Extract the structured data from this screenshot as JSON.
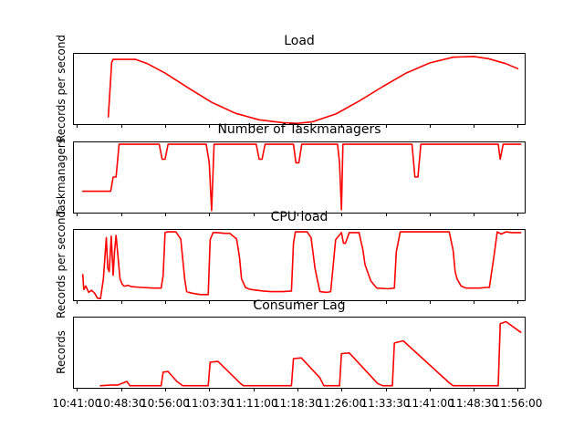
{
  "colors": {
    "series": "#ff0000",
    "axis": "#000000",
    "background": "#ffffff"
  },
  "x_tick_labels": [
    "10:41:00",
    "10:48:30",
    "10:56:00",
    "11:03:30",
    "11:11:00",
    "11:18:30",
    "11:26:00",
    "11:33:30",
    "11:41:00",
    "11:48:30",
    "11:56:00"
  ],
  "chart_data": [
    {
      "type": "line",
      "title": "Load",
      "ylabel": "Records per second",
      "y_ticks_shown": false,
      "x_format": "HH:MM:SS",
      "xlim": [
        "10:40:20",
        "11:57:10"
      ],
      "ylim": [
        0.3,
        10.2
      ],
      "series": [
        {
          "x": [
            "10:46:20",
            "10:46:55",
            "10:47:10",
            "10:50:00",
            "10:51:00",
            "10:53:00",
            "10:56:00",
            "11:00:00",
            "11:04:00",
            "11:08:00",
            "11:12:00",
            "11:16:00",
            "11:18:30",
            "11:21:00",
            "11:25:00",
            "11:29:00",
            "11:33:00",
            "11:37:00",
            "11:41:00",
            "11:45:00",
            "11:48:30",
            "11:51:00",
            "11:54:00",
            "11:56:00"
          ],
          "y": [
            1.3,
            8.9,
            9.3,
            9.3,
            9.3,
            8.7,
            7.4,
            5.3,
            3.3,
            1.8,
            0.9,
            0.5,
            0.4,
            0.6,
            1.7,
            3.5,
            5.5,
            7.4,
            8.8,
            9.6,
            9.7,
            9.4,
            8.7,
            8.0
          ]
        }
      ]
    },
    {
      "type": "line",
      "title": "Number of Taskmanagers",
      "ylabel": "Taskmanagers",
      "y_ticks_shown": false,
      "x_format": "HH:MM:SS",
      "xlim": [
        "10:40:20",
        "11:57:10"
      ],
      "ylim": [
        0,
        10
      ],
      "series": [
        {
          "x": [
            "10:42:00",
            "10:46:45",
            "10:47:10",
            "10:47:40",
            "10:48:10",
            "10:48:40",
            "10:49:00",
            "10:55:00",
            "10:55:30",
            "10:56:00",
            "10:56:30",
            "10:57:00",
            "11:03:00",
            "11:03:30",
            "11:03:55",
            "11:04:20",
            "11:04:50",
            "11:11:30",
            "11:12:00",
            "11:12:30",
            "11:13:00",
            "11:17:50",
            "11:18:15",
            "11:18:45",
            "11:19:15",
            "11:19:50",
            "11:23:20",
            "11:25:20",
            "11:25:40",
            "11:26:00",
            "11:26:15",
            "11:26:30",
            "11:38:00",
            "11:38:30",
            "11:39:00",
            "11:39:30",
            "11:52:40",
            "11:53:00",
            "11:53:30",
            "11:54:00",
            "11:56:30"
          ],
          "y": [
            3.0,
            3.0,
            5.0,
            5.0,
            9.6,
            9.6,
            9.6,
            9.6,
            7.5,
            7.5,
            9.6,
            9.6,
            9.6,
            7.0,
            0.3,
            9.6,
            9.6,
            9.6,
            7.5,
            7.5,
            9.6,
            9.6,
            7.0,
            7.0,
            9.6,
            9.6,
            9.6,
            9.6,
            7.0,
            0.4,
            9.6,
            9.6,
            9.6,
            5.0,
            5.0,
            9.6,
            9.6,
            7.5,
            9.6,
            9.6,
            9.6
          ]
        }
      ]
    },
    {
      "type": "line",
      "title": "CPU load",
      "ylabel": "Records per second",
      "y_ticks_shown": false,
      "x_format": "HH:MM:SS",
      "xlim": [
        "10:40:20",
        "11:57:10"
      ],
      "ylim": [
        0,
        10
      ],
      "series": [
        {
          "x": [
            "10:42:00",
            "10:42:10",
            "10:42:30",
            "10:43:00",
            "10:43:30",
            "10:44:00",
            "10:44:30",
            "10:45:00",
            "10:45:30",
            "10:46:00",
            "10:46:15",
            "10:46:30",
            "10:46:50",
            "10:47:10",
            "10:47:25",
            "10:47:40",
            "10:48:00",
            "10:48:20",
            "10:48:40",
            "10:49:00",
            "10:49:20",
            "10:49:40",
            "10:50:20",
            "10:52:00",
            "10:54:00",
            "10:55:20",
            "10:55:40",
            "10:56:00",
            "10:56:20",
            "10:56:50",
            "10:57:20",
            "10:57:50",
            "10:58:40",
            "10:59:20",
            "10:59:40",
            "11:00:30",
            "11:02:00",
            "11:03:20",
            "11:03:40",
            "11:04:10",
            "11:05:00",
            "11:06:00",
            "11:07:00",
            "11:08:10",
            "11:08:40",
            "11:09:00",
            "11:09:40",
            "11:10:10",
            "11:10:40",
            "11:12:40",
            "11:14:00",
            "11:16:00",
            "11:17:30",
            "11:17:50",
            "11:18:10",
            "11:19:00",
            "11:20:10",
            "11:20:50",
            "11:21:30",
            "11:22:00",
            "11:22:20",
            "11:23:30",
            "11:24:10",
            "11:24:30",
            "11:25:00",
            "11:26:00",
            "11:26:20",
            "11:26:40",
            "11:27:20",
            "11:28:00",
            "11:29:00",
            "11:29:40",
            "11:30:00",
            "11:31:00",
            "11:32:00",
            "11:34:00",
            "11:35:00",
            "11:35:20",
            "11:36:00",
            "11:37:40",
            "11:40:00",
            "11:42:00",
            "11:44:20",
            "11:45:00",
            "11:45:20",
            "11:45:40",
            "11:46:20",
            "11:47:10",
            "11:48:10",
            "11:49:30",
            "11:50:40",
            "11:51:10",
            "11:52:00",
            "11:52:30",
            "11:53:10",
            "11:54:00",
            "11:55:00",
            "11:56:30"
          ],
          "y": [
            3.6,
            1.5,
            2.0,
            1.1,
            1.4,
            1.0,
            0.3,
            0.2,
            3.0,
            8.8,
            4.5,
            4.0,
            9.0,
            3.5,
            7.0,
            9.1,
            6.0,
            3.0,
            2.3,
            2.0,
            2.0,
            2.1,
            1.9,
            1.8,
            1.7,
            1.7,
            3.5,
            9.5,
            9.6,
            9.6,
            9.6,
            9.6,
            8.6,
            3.0,
            1.2,
            1.0,
            0.8,
            0.8,
            8.5,
            9.5,
            9.5,
            9.4,
            9.4,
            8.6,
            6.0,
            3.0,
            1.8,
            1.6,
            1.5,
            1.3,
            1.2,
            1.2,
            1.3,
            8.0,
            9.6,
            9.6,
            9.6,
            8.8,
            4.5,
            2.5,
            1.2,
            1.1,
            1.2,
            4.0,
            8.5,
            9.5,
            8.0,
            8.0,
            9.5,
            9.5,
            9.5,
            7.0,
            5.0,
            2.7,
            1.7,
            1.6,
            1.7,
            6.8,
            9.6,
            9.6,
            9.6,
            9.6,
            9.6,
            7.0,
            4.0,
            3.0,
            2.0,
            1.7,
            1.7,
            1.7,
            1.8,
            1.8,
            6.5,
            9.6,
            9.3,
            9.6,
            9.5,
            9.5
          ]
        }
      ]
    },
    {
      "type": "line",
      "title": "Consumer Lag",
      "ylabel": "Records",
      "y_ticks_shown": false,
      "x_format": "HH:MM:SS",
      "xlim": [
        "10:40:20",
        "11:57:10"
      ],
      "ylim": [
        0,
        10
      ],
      "series": [
        {
          "x": [
            "10:45:00",
            "10:47:00",
            "10:48:00",
            "10:49:30",
            "10:50:00",
            "10:55:20",
            "10:55:40",
            "10:56:30",
            "10:58:00",
            "10:59:00",
            "11:03:20",
            "11:03:40",
            "11:05:00",
            "11:08:50",
            "11:09:20",
            "11:10:30",
            "11:12:20",
            "11:17:30",
            "11:17:50",
            "11:19:10",
            "11:22:20",
            "11:23:00",
            "11:25:40",
            "11:26:00",
            "11:27:20",
            "11:32:10",
            "11:33:00",
            "11:34:40",
            "11:35:00",
            "11:36:30",
            "11:44:20",
            "11:45:00",
            "11:52:40",
            "11:53:00",
            "11:54:00",
            "11:56:30"
          ],
          "y": [
            0.3,
            0.4,
            0.4,
            0.9,
            0.3,
            0.3,
            2.2,
            2.3,
            0.9,
            0.3,
            0.3,
            3.6,
            3.7,
            0.6,
            0.3,
            0.3,
            0.3,
            0.3,
            4.1,
            4.2,
            1.4,
            0.3,
            0.3,
            4.8,
            4.9,
            0.6,
            0.3,
            0.3,
            6.3,
            6.6,
            0.7,
            0.3,
            0.3,
            9.0,
            9.3,
            7.8
          ]
        }
      ]
    }
  ]
}
